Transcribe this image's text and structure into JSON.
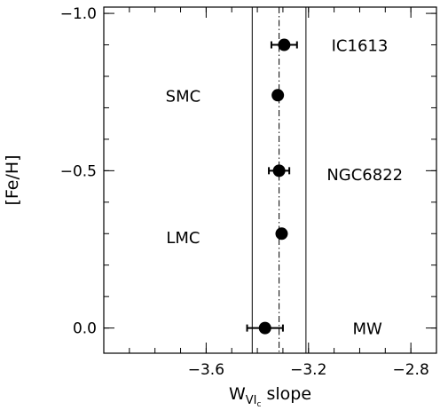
{
  "chart_data": {
    "type": "scatter",
    "title": "",
    "xlabel": {
      "main": "W",
      "sub": "VI",
      "subsub": "c",
      "suffix": " slope"
    },
    "ylabel": "[Fe/H]",
    "xlim": [
      -4.0,
      -2.7
    ],
    "ylim": [
      0.08,
      -1.02
    ],
    "y_inverted": true,
    "x_ticks": [
      -3.6,
      -3.2,
      -2.8
    ],
    "x_tick_labels": [
      "−3.6",
      "−3.2",
      "−2.8"
    ],
    "y_ticks": [
      -1.0,
      -0.5,
      0.0
    ],
    "y_tick_labels": [
      "−1.0",
      "−0.5",
      "0.0"
    ],
    "x_minor_step": 0.1,
    "y_minor_step": 0.1,
    "grid": false,
    "series": [
      {
        "points": [
          {
            "label": "IC1613",
            "x": -3.295,
            "y": -0.9,
            "xerr": 0.05
          },
          {
            "label": "SMC",
            "x": -3.32,
            "y": -0.74,
            "xerr": 0.0
          },
          {
            "label": "NGC6822",
            "x": -3.315,
            "y": -0.5,
            "xerr": 0.04
          },
          {
            "label": "LMC",
            "x": -3.305,
            "y": -0.3,
            "xerr": 0.0
          },
          {
            "label": "MW",
            "x": -3.37,
            "y": 0.0,
            "xerr": 0.07
          }
        ]
      }
    ],
    "galaxy_labels": [
      {
        "text": "IC1613",
        "x": -3.0,
        "y": -0.9
      },
      {
        "text": "SMC",
        "x": -3.69,
        "y": -0.74
      },
      {
        "text": "NGC6822",
        "x": -2.98,
        "y": -0.49
      },
      {
        "text": "LMC",
        "x": -3.69,
        "y": -0.29
      },
      {
        "text": "MW",
        "x": -2.97,
        "y": 0.0
      }
    ],
    "reference_line": {
      "x": -3.315,
      "style": "dash-dot"
    },
    "band": {
      "x_min": -3.42,
      "x_max": -3.21
    }
  }
}
